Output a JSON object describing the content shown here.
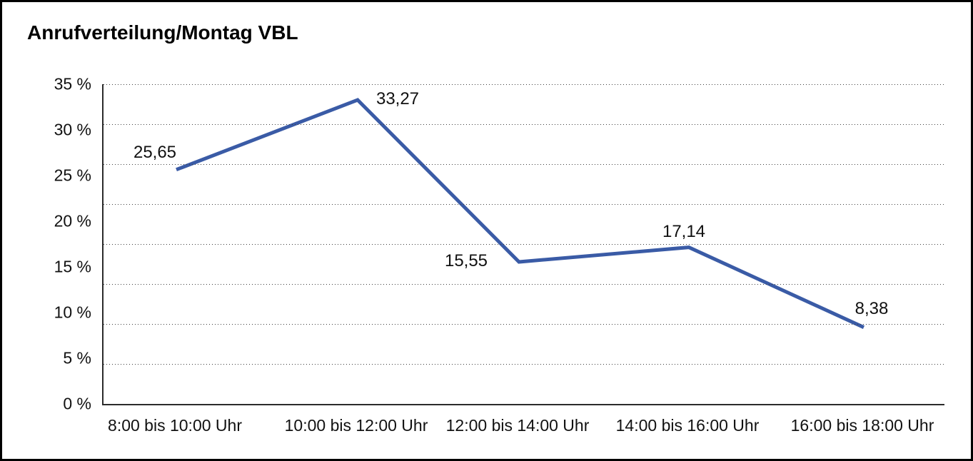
{
  "chart_data": {
    "type": "line",
    "title": "Anrufverteilung/Montag VBL",
    "categories": [
      "8:00 bis 10:00 Uhr",
      "10:00 bis 12:00 Uhr",
      "12:00 bis 14:00 Uhr",
      "14:00 bis 16:00 Uhr",
      "16:00 bis 18:00 Uhr"
    ],
    "values": [
      25.65,
      33.27,
      15.55,
      17.14,
      8.38
    ],
    "value_labels": [
      "25,65",
      "33,27",
      "15,55",
      "17,14",
      "8,38"
    ],
    "y_ticks": [
      {
        "value": 0,
        "label": "0 %"
      },
      {
        "value": 5,
        "label": "5 %"
      },
      {
        "value": 10,
        "label": "10 %"
      },
      {
        "value": 15,
        "label": "15 %"
      },
      {
        "value": 20,
        "label": "20 %"
      },
      {
        "value": 25,
        "label": "25 %"
      },
      {
        "value": 30,
        "label": "30 %"
      },
      {
        "value": 35,
        "label": "35 %"
      }
    ],
    "ylim": [
      0,
      35
    ],
    "xlabel": "",
    "ylabel": "",
    "grid": "horizontal dotted, 8 equal divisions",
    "gridline_divisions": 8,
    "legend": "none",
    "line_color": "#3a5ba6",
    "text_color": "#111111",
    "axis_color": "#2b2b2b",
    "background_color": "#ffffff",
    "decimal_separator": ","
  }
}
